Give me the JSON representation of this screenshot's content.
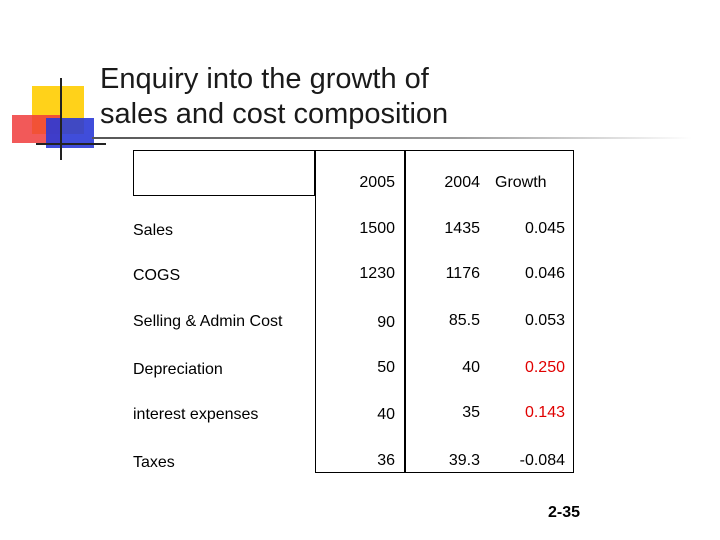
{
  "slide": {
    "title_line1": "Enquiry into the growth of",
    "title_line2": "sales and cost composition",
    "page_number": "2-35"
  },
  "table": {
    "headers": [
      "",
      "2005",
      "2004",
      "Growth"
    ],
    "rows": [
      {
        "label": "Sales",
        "y2005": "1500",
        "y2004": "1435",
        "growth": "0.045",
        "growth_color": "#000000"
      },
      {
        "label": "COGS",
        "y2005": "1230",
        "y2004": "1176",
        "growth": "0.046",
        "growth_color": "#000000"
      },
      {
        "label": "Selling & Admin Cost",
        "y2005": "90",
        "y2004": "85.5",
        "growth": "0.053",
        "growth_color": "#000000"
      },
      {
        "label": "Depreciation",
        "y2005": "50",
        "y2004": "40",
        "growth": "0.250",
        "growth_color": "#e00000"
      },
      {
        "label": "interest expenses",
        "y2005": "40",
        "y2004": "35",
        "growth": "0.143",
        "growth_color": "#e00000"
      },
      {
        "label": "Taxes",
        "y2005": "36",
        "y2004": "39.3",
        "growth": "-0.084",
        "growth_color": "#000000"
      }
    ]
  }
}
